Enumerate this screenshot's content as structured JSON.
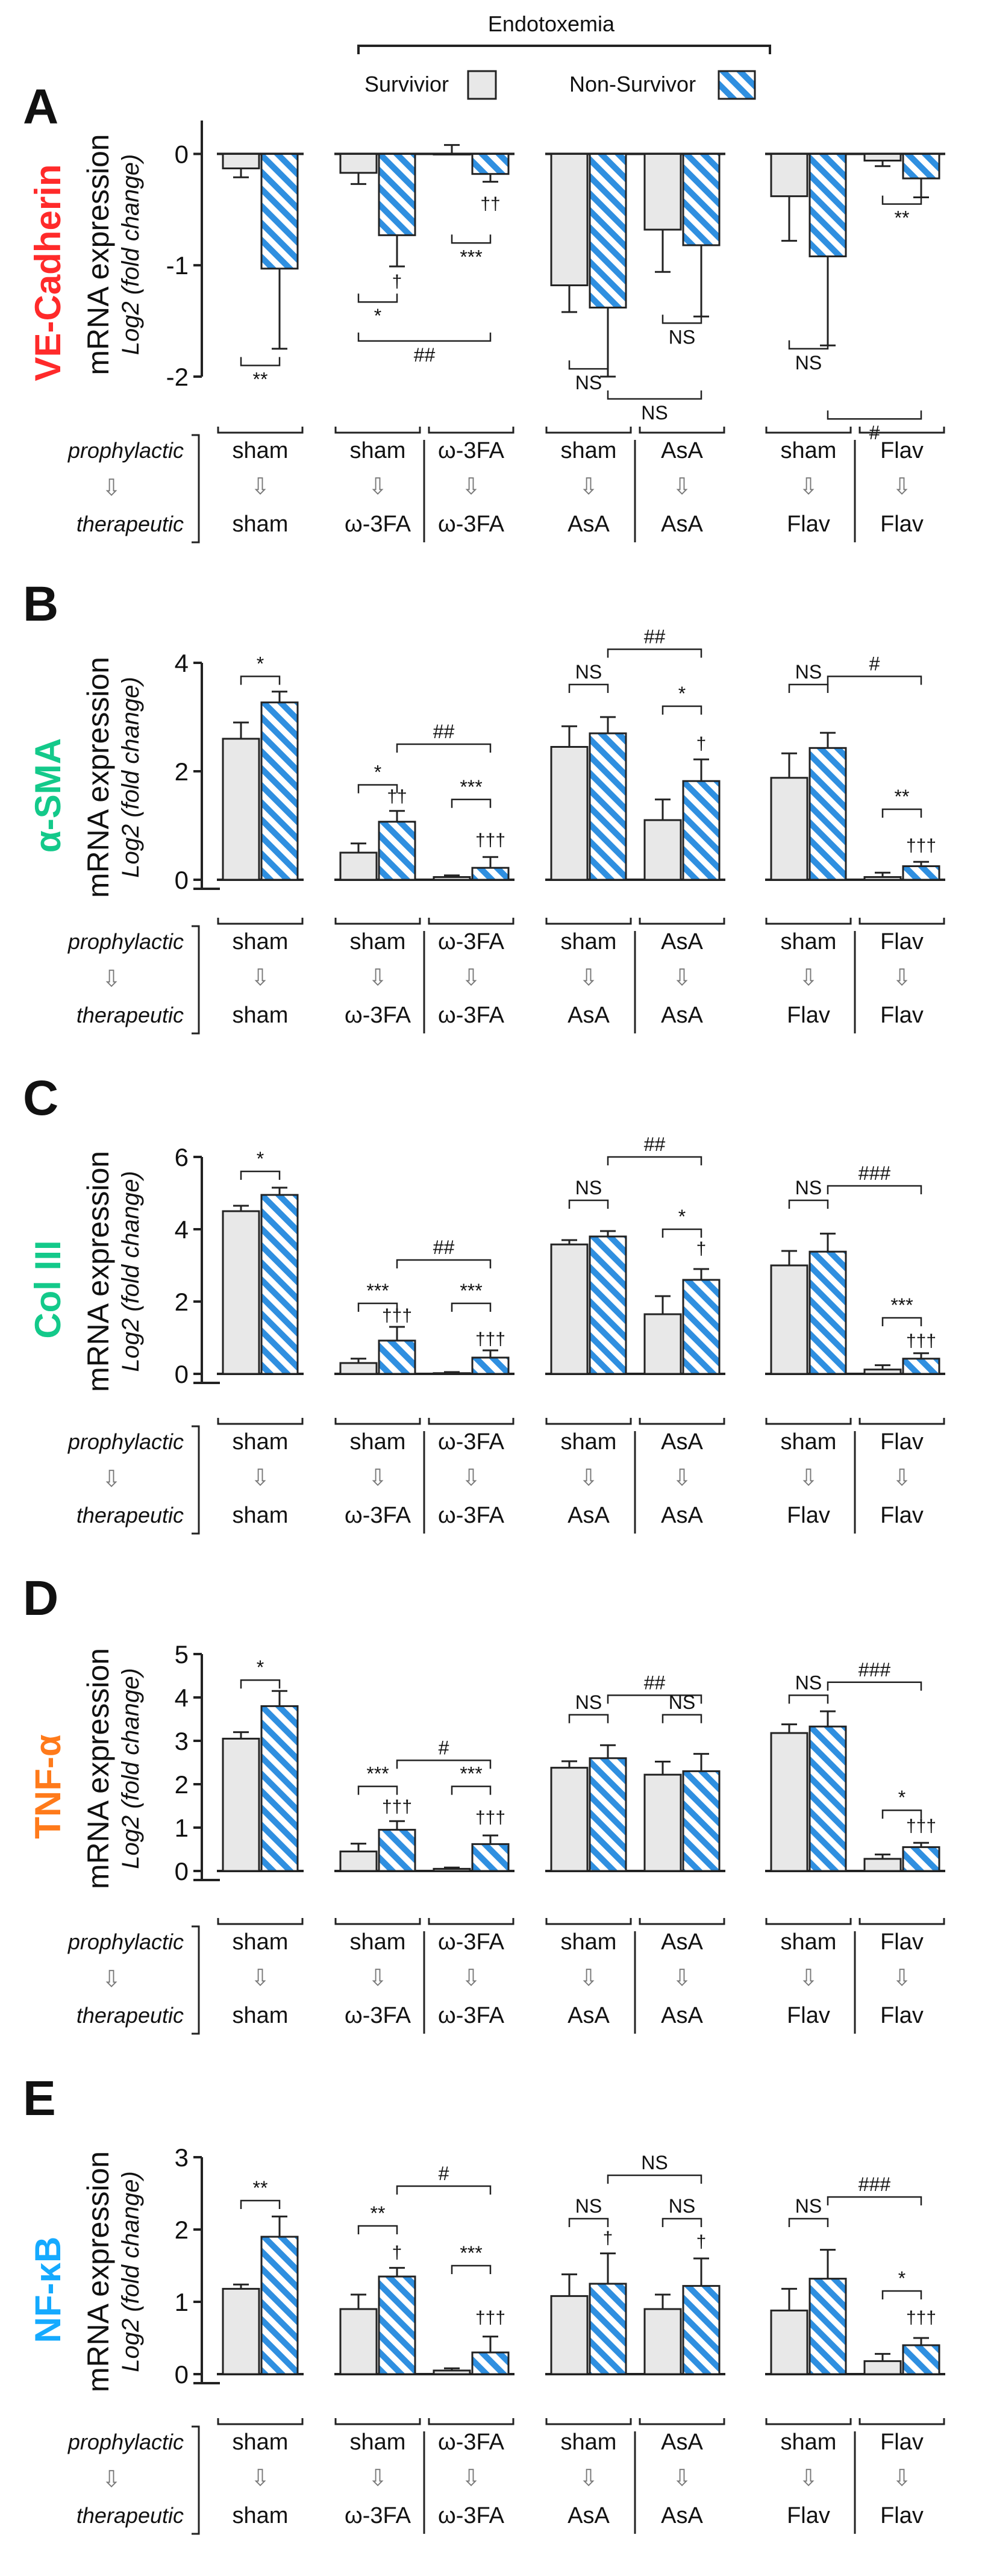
{
  "header": {
    "group_title": "Endotoxemia",
    "legend_survivor": "Survivior",
    "legend_nonsurvivor": "Non-Survivor"
  },
  "colors": {
    "survivor_fill": "#e8e8e8",
    "nonsurvivor_stripe": "#2f8fe0",
    "stroke": "#222222",
    "panel_a_label": "#ff2a2a",
    "panel_b_label": "#13c98a",
    "panel_c_label": "#13c98a",
    "panel_d_label": "#ff7a1a",
    "panel_e_label": "#15aaff"
  },
  "common": {
    "ylabel_main": "mRNA expression",
    "ylabel_sub": "Log2 (fold change)",
    "row_prophylactic": "prophylactic",
    "row_therapeutic": "therapeutic",
    "arrow_glyph": "⇩",
    "groups": [
      {
        "pairs": [
          [
            "sham",
            "sham"
          ]
        ]
      },
      {
        "pairs": [
          [
            "sham",
            "ω-3FA"
          ],
          [
            "ω-3FA",
            "ω-3FA"
          ]
        ]
      },
      {
        "pairs": [
          [
            "sham",
            "AsA"
          ],
          [
            "AsA",
            "AsA"
          ]
        ]
      },
      {
        "pairs": [
          [
            "sham",
            "Flav"
          ],
          [
            "Flav",
            "Flav"
          ]
        ]
      }
    ]
  },
  "chart_data": [
    {
      "type": "bar",
      "panel_letter": "A",
      "gene": "VE-Cadherin",
      "ylim": [
        -2,
        0.3
      ],
      "yticks": [
        0,
        -1,
        -2
      ],
      "categories": [
        "sham/sham",
        "sham/ω-3FA",
        "ω-3FA/ω-3FA",
        "sham/AsA",
        "AsA/AsA",
        "sham/Flav",
        "Flav/Flav"
      ],
      "series": [
        {
          "name": "Survivior",
          "values": [
            -0.13,
            -0.17,
            0.0,
            -1.18,
            -0.68,
            -0.38,
            -0.06
          ],
          "errors": [
            0.08,
            0.1,
            0.08,
            0.24,
            0.38,
            0.4,
            0.05
          ]
        },
        {
          "name": "Non-Survivor",
          "values": [
            -1.03,
            -0.73,
            -0.18,
            -1.38,
            -0.82,
            -0.92,
            -0.22
          ],
          "errors": [
            0.72,
            0.28,
            0.07,
            0.62,
            0.64,
            0.8,
            0.17
          ]
        }
      ],
      "brackets": [
        {
          "from": 0,
          "to": 1,
          "level": -1.9,
          "label": "**",
          "pos": "below"
        },
        {
          "from": 2,
          "to": 3,
          "level": -1.33,
          "label": "*",
          "pos": "below"
        },
        {
          "from": 2,
          "to": 5,
          "level": -1.68,
          "label": "##",
          "pos": "below"
        },
        {
          "from": 4,
          "to": 5,
          "level": -0.8,
          "label": "***",
          "pos": "below"
        },
        {
          "from": 6,
          "to": 7,
          "level": -1.93,
          "label": "NS",
          "pos": "below"
        },
        {
          "from": 7,
          "to": 10,
          "level": -2.2,
          "label": "NS",
          "pos": "below"
        },
        {
          "from": 9,
          "to": 10,
          "level": -1.52,
          "label": "NS",
          "pos": "below"
        },
        {
          "from": 12,
          "to": 13,
          "level": -1.75,
          "label": "NS",
          "pos": "below"
        },
        {
          "from": 13,
          "to": 16,
          "level": -2.38,
          "label": "#",
          "pos": "below"
        },
        {
          "from": 15,
          "to": 16,
          "level": -0.45,
          "label": "**",
          "pos": "below"
        }
      ],
      "marks": [
        {
          "bar": 3,
          "text": "†",
          "level": -1.2
        },
        {
          "bar": 5,
          "text": "††",
          "level": -0.5
        }
      ]
    },
    {
      "type": "bar",
      "panel_letter": "B",
      "gene": "α-SMA",
      "ylim": [
        0,
        4
      ],
      "yticks": [
        0,
        2,
        4
      ],
      "categories": [
        "sham/sham",
        "sham/ω-3FA",
        "ω-3FA/ω-3FA",
        "sham/AsA",
        "AsA/AsA",
        "sham/Flav",
        "Flav/Flav"
      ],
      "series": [
        {
          "name": "Survivior",
          "values": [
            2.6,
            0.5,
            0.05,
            2.45,
            1.1,
            1.88,
            0.05
          ],
          "errors": [
            0.3,
            0.17,
            0.03,
            0.38,
            0.38,
            0.45,
            0.08
          ]
        },
        {
          "name": "Non-Survivor",
          "values": [
            3.27,
            1.07,
            0.22,
            2.7,
            1.82,
            2.43,
            0.25
          ],
          "errors": [
            0.2,
            0.2,
            0.2,
            0.3,
            0.4,
            0.28,
            0.08
          ]
        }
      ],
      "brackets": [
        {
          "from": 0,
          "to": 1,
          "level": 3.75,
          "label": "*",
          "pos": "above"
        },
        {
          "from": 2,
          "to": 3,
          "level": 1.75,
          "label": "*",
          "pos": "above"
        },
        {
          "from": 3,
          "to": 5,
          "level": 2.5,
          "label": "##",
          "pos": "above"
        },
        {
          "from": 4,
          "to": 5,
          "level": 1.48,
          "label": "***",
          "pos": "above"
        },
        {
          "from": 6,
          "to": 7,
          "level": 3.6,
          "label": "NS",
          "pos": "above"
        },
        {
          "from": 7,
          "to": 10,
          "level": 4.25,
          "label": "##",
          "pos": "above"
        },
        {
          "from": 9,
          "to": 10,
          "level": 3.2,
          "label": "*",
          "pos": "above"
        },
        {
          "from": 12,
          "to": 13,
          "level": 3.6,
          "label": "NS",
          "pos": "above"
        },
        {
          "from": 13,
          "to": 16,
          "level": 3.75,
          "label": "#",
          "pos": "above"
        },
        {
          "from": 15,
          "to": 16,
          "level": 1.3,
          "label": "**",
          "pos": "above"
        }
      ],
      "marks": [
        {
          "bar": 3,
          "text": "††",
          "level": 1.43
        },
        {
          "bar": 5,
          "text": "†††",
          "level": 0.62
        },
        {
          "bar": 10,
          "text": "†",
          "level": 2.4
        },
        {
          "bar": 16,
          "text": "†††",
          "level": 0.52
        }
      ]
    },
    {
      "type": "bar",
      "panel_letter": "C",
      "gene": "Col III",
      "ylim": [
        0,
        6
      ],
      "yticks": [
        0,
        2,
        4,
        6
      ],
      "categories": [
        "sham/sham",
        "sham/ω-3FA",
        "ω-3FA/ω-3FA",
        "sham/AsA",
        "AsA/AsA",
        "sham/Flav",
        "Flav/Flav"
      ],
      "series": [
        {
          "name": "Survivior",
          "values": [
            4.5,
            0.3,
            0.02,
            3.58,
            1.65,
            3.0,
            0.12
          ],
          "errors": [
            0.15,
            0.12,
            0.03,
            0.12,
            0.5,
            0.4,
            0.12
          ]
        },
        {
          "name": "Non-Survivor",
          "values": [
            4.95,
            0.92,
            0.45,
            3.8,
            2.6,
            3.38,
            0.42
          ],
          "errors": [
            0.2,
            0.38,
            0.2,
            0.15,
            0.3,
            0.5,
            0.15
          ]
        }
      ],
      "brackets": [
        {
          "from": 0,
          "to": 1,
          "level": 5.6,
          "label": "*",
          "pos": "above"
        },
        {
          "from": 2,
          "to": 3,
          "level": 1.95,
          "label": "***",
          "pos": "above"
        },
        {
          "from": 3,
          "to": 5,
          "level": 3.15,
          "label": "##",
          "pos": "above"
        },
        {
          "from": 4,
          "to": 5,
          "level": 1.95,
          "label": "***",
          "pos": "above"
        },
        {
          "from": 6,
          "to": 7,
          "level": 4.8,
          "label": "NS",
          "pos": "above"
        },
        {
          "from": 7,
          "to": 10,
          "level": 6.0,
          "label": "##",
          "pos": "above"
        },
        {
          "from": 9,
          "to": 10,
          "level": 4.0,
          "label": "*",
          "pos": "above"
        },
        {
          "from": 12,
          "to": 13,
          "level": 4.8,
          "label": "NS",
          "pos": "above"
        },
        {
          "from": 13,
          "to": 16,
          "level": 5.2,
          "label": "###",
          "pos": "above"
        },
        {
          "from": 15,
          "to": 16,
          "level": 1.55,
          "label": "***",
          "pos": "above"
        }
      ],
      "marks": [
        {
          "bar": 3,
          "text": "†††",
          "level": 1.45
        },
        {
          "bar": 5,
          "text": "†††",
          "level": 0.8
        },
        {
          "bar": 10,
          "text": "†",
          "level": 3.3
        },
        {
          "bar": 16,
          "text": "†††",
          "level": 0.75
        }
      ]
    },
    {
      "type": "bar",
      "panel_letter": "D",
      "gene": "TNF-α",
      "ylim": [
        0,
        5
      ],
      "yticks": [
        0,
        1,
        2,
        3,
        4,
        5
      ],
      "categories": [
        "sham/sham",
        "sham/ω-3FA",
        "ω-3FA/ω-3FA",
        "sham/AsA",
        "AsA/AsA",
        "sham/Flav",
        "Flav/Flav"
      ],
      "series": [
        {
          "name": "Survivior",
          "values": [
            3.05,
            0.45,
            0.05,
            2.38,
            2.22,
            3.18,
            0.28
          ],
          "errors": [
            0.15,
            0.18,
            0.03,
            0.15,
            0.3,
            0.2,
            0.1
          ]
        },
        {
          "name": "Non-Survivor",
          "values": [
            3.8,
            0.95,
            0.62,
            2.6,
            2.3,
            3.33,
            0.55
          ],
          "errors": [
            0.35,
            0.2,
            0.2,
            0.3,
            0.4,
            0.35,
            0.1
          ]
        }
      ],
      "brackets": [
        {
          "from": 0,
          "to": 1,
          "level": 4.4,
          "label": "*",
          "pos": "above"
        },
        {
          "from": 2,
          "to": 3,
          "level": 1.95,
          "label": "***",
          "pos": "above"
        },
        {
          "from": 3,
          "to": 5,
          "level": 2.55,
          "label": "#",
          "pos": "above"
        },
        {
          "from": 4,
          "to": 5,
          "level": 1.95,
          "label": "***",
          "pos": "above"
        },
        {
          "from": 6,
          "to": 7,
          "level": 3.6,
          "label": "NS",
          "pos": "above"
        },
        {
          "from": 7,
          "to": 10,
          "level": 4.05,
          "label": "##",
          "pos": "above"
        },
        {
          "from": 9,
          "to": 10,
          "level": 3.6,
          "label": "NS",
          "pos": "above"
        },
        {
          "from": 12,
          "to": 13,
          "level": 4.05,
          "label": "NS",
          "pos": "above"
        },
        {
          "from": 13,
          "to": 16,
          "level": 4.35,
          "label": "###",
          "pos": "above"
        },
        {
          "from": 15,
          "to": 16,
          "level": 1.4,
          "label": "*",
          "pos": "above"
        }
      ],
      "marks": [
        {
          "bar": 3,
          "text": "†††",
          "level": 1.35
        },
        {
          "bar": 5,
          "text": "†††",
          "level": 1.1
        },
        {
          "bar": 16,
          "text": "†††",
          "level": 0.9
        }
      ]
    },
    {
      "type": "bar",
      "panel_letter": "E",
      "gene": "NF-κB",
      "ylim": [
        0,
        3
      ],
      "yticks": [
        0,
        1,
        2,
        3
      ],
      "categories": [
        "sham/sham",
        "sham/ω-3FA",
        "ω-3FA/ω-3FA",
        "sham/AsA",
        "AsA/AsA",
        "sham/Flav",
        "Flav/Flav"
      ],
      "series": [
        {
          "name": "Survivior",
          "values": [
            1.18,
            0.9,
            0.05,
            1.08,
            0.9,
            0.88,
            0.18
          ],
          "errors": [
            0.06,
            0.2,
            0.03,
            0.3,
            0.2,
            0.3,
            0.1
          ]
        },
        {
          "name": "Non-Survivor",
          "values": [
            1.9,
            1.35,
            0.3,
            1.25,
            1.22,
            1.32,
            0.4
          ],
          "errors": [
            0.28,
            0.12,
            0.22,
            0.42,
            0.38,
            0.4,
            0.1
          ]
        }
      ],
      "brackets": [
        {
          "from": 0,
          "to": 1,
          "level": 2.4,
          "label": "**",
          "pos": "above"
        },
        {
          "from": 2,
          "to": 3,
          "level": 2.05,
          "label": "**",
          "pos": "above"
        },
        {
          "from": 3,
          "to": 5,
          "level": 2.6,
          "label": "#",
          "pos": "above"
        },
        {
          "from": 4,
          "to": 5,
          "level": 1.5,
          "label": "***",
          "pos": "above"
        },
        {
          "from": 6,
          "to": 7,
          "level": 2.15,
          "label": "NS",
          "pos": "above"
        },
        {
          "from": 7,
          "to": 10,
          "level": 2.75,
          "label": "NS",
          "pos": "above"
        },
        {
          "from": 9,
          "to": 10,
          "level": 2.15,
          "label": "NS",
          "pos": "above"
        },
        {
          "from": 12,
          "to": 13,
          "level": 2.15,
          "label": "NS",
          "pos": "above"
        },
        {
          "from": 13,
          "to": 16,
          "level": 2.45,
          "label": "###",
          "pos": "above"
        },
        {
          "from": 15,
          "to": 16,
          "level": 1.15,
          "label": "*",
          "pos": "above"
        }
      ],
      "marks": [
        {
          "bar": 3,
          "text": "†",
          "level": 1.6
        },
        {
          "bar": 5,
          "text": "†††",
          "level": 0.7
        },
        {
          "bar": 7,
          "text": "†",
          "level": 1.8
        },
        {
          "bar": 10,
          "text": "†",
          "level": 1.75
        },
        {
          "bar": 16,
          "text": "†††",
          "level": 0.7
        }
      ]
    }
  ]
}
